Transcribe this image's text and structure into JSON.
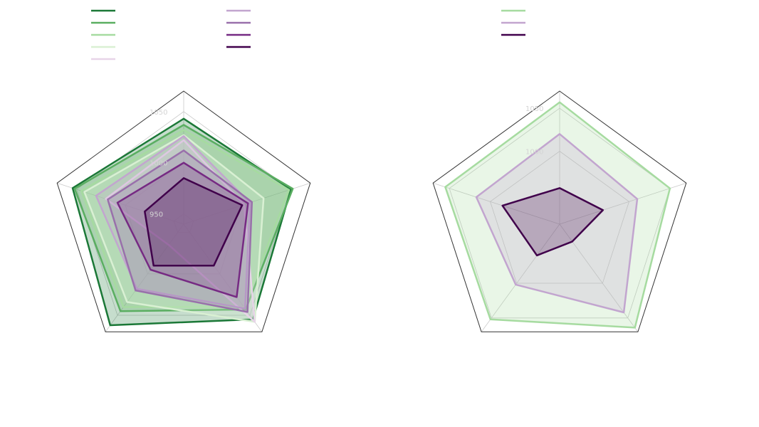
{
  "chart_data": [
    {
      "type": "radar",
      "axes_count": 5,
      "r_range": [
        940,
        1070
      ],
      "tick_values": [
        950,
        1000,
        1050
      ],
      "tick_labels": [
        "950",
        "1000",
        "1050"
      ],
      "grid": true,
      "legend_placement": "top-left",
      "legend_columns": 2,
      "series": [
        {
          "values": [
            1043,
            1050,
            1055,
            1062,
            1054
          ],
          "color": "#1b7837"
        },
        {
          "values": [
            1037,
            1052,
            1043,
            1045,
            1052
          ],
          "color": "#5aae61"
        },
        {
          "values": [
            1032,
            1048,
            1040,
            1040,
            1045
          ],
          "color": "#a6dba0"
        },
        {
          "values": [
            1027,
            1022,
            1058,
            1034,
            1042
          ],
          "color": "#d9f0d3"
        },
        {
          "values": [
            1022,
            1002,
            1058,
            965,
            1020
          ],
          "color": "#e7d4e8"
        },
        {
          "values": [
            1026,
            1008,
            1042,
            1018,
            1030
          ],
          "color": "#c2a5cf"
        },
        {
          "values": [
            1012,
            1010,
            1046,
            1020,
            1018
          ],
          "color": "#9970ab"
        },
        {
          "values": [
            1000,
            1006,
            1028,
            995,
            1008
          ],
          "color": "#762a83"
        },
        {
          "values": [
            985,
            1000,
            990,
            990,
            980
          ],
          "color": "#40004b"
        }
      ]
    },
    {
      "type": "radar",
      "axes_count": 5,
      "r_range": [
        915,
        1070
      ],
      "tick_values": [
        1000,
        1050
      ],
      "tick_labels": [
        "1000",
        "1050"
      ],
      "grid": true,
      "legend_placement": "top-left",
      "legend_columns": 1,
      "series": [
        {
          "values": [
            1057,
            1050,
            1064,
            1052,
            1055
          ],
          "color": "#a6dba0"
        },
        {
          "values": [
            1020,
            1010,
            1042,
            1002,
            1017
          ],
          "color": "#c2a5cf"
        },
        {
          "values": [
            957,
            968,
            940,
            960,
            985
          ],
          "color": "#40004b"
        }
      ]
    }
  ]
}
